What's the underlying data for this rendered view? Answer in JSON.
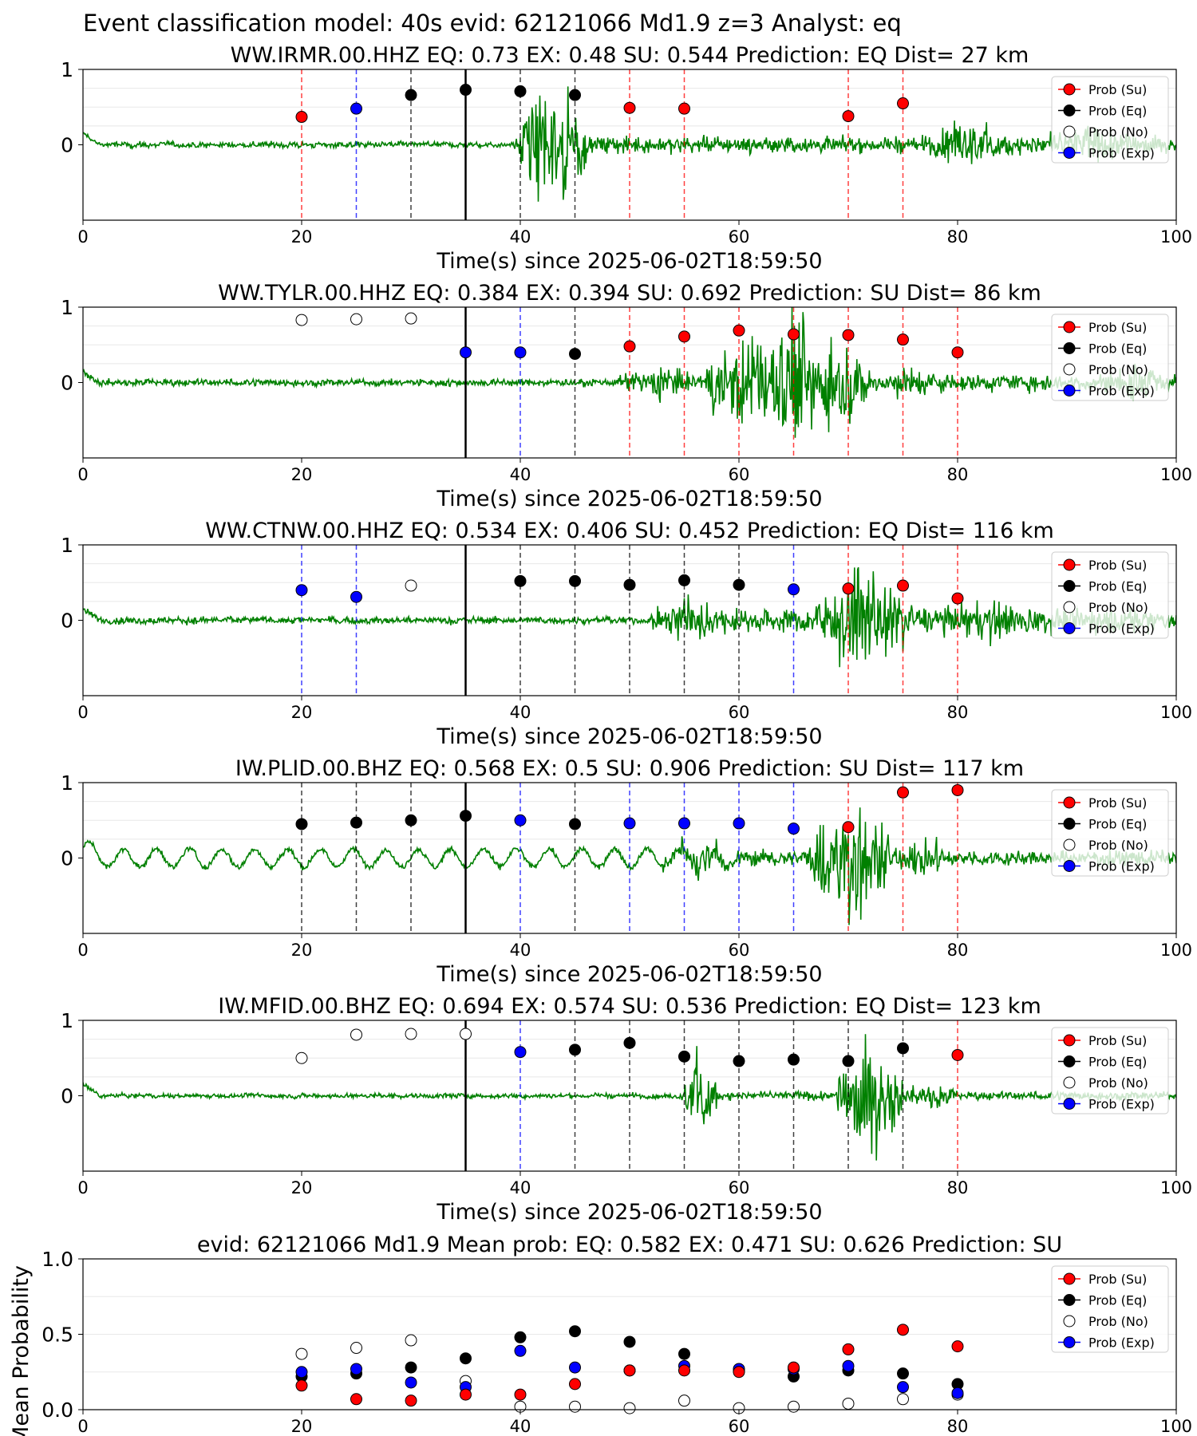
{
  "figure": {
    "suptitle": "Event classification model: 40s evid: 62121066 Md1.9 z=3 Analyst: eq",
    "colors": {
      "su": "#ff0000",
      "eq": "#000000",
      "no": "#ffffff",
      "exp": "#0000ff",
      "waveform": "#008000",
      "arrival_line": "#000000"
    },
    "legend": [
      "Prob (Su)",
      "Prob (Eq)",
      "Prob (No)",
      "Prob (Exp)"
    ],
    "legend_placement": "upper-right"
  },
  "chart_data": [
    {
      "type": "scatter",
      "panel": "station",
      "title": "WW.IRMR.00.HHZ   EQ: 0.73  EX: 0.48  SU: 0.544   Prediction: EQ    Dist= 27 km",
      "xlabel": "Time(s) since 2025-06-02T18:59:50",
      "xlim": [
        0,
        100
      ],
      "ylim": [
        -1,
        1
      ],
      "xticks": [
        "0",
        "20",
        "40",
        "60",
        "80",
        "100"
      ],
      "yticks": [
        "0",
        "1"
      ],
      "arrival_time": 35,
      "waveform": {
        "onset": 39.5,
        "bursts": [
          [
            40,
            46,
            1.2
          ],
          [
            77,
            85,
            0.45
          ],
          [
            84,
            100,
            0.3
          ]
        ],
        "pre_amp": 0.05,
        "post_amp": 0.14
      },
      "points": [
        {
          "t": 20,
          "p": 0.37,
          "class": "su"
        },
        {
          "t": 25,
          "p": 0.48,
          "class": "exp"
        },
        {
          "t": 30,
          "p": 0.66,
          "class": "eq"
        },
        {
          "t": 35,
          "p": 0.73,
          "class": "eq"
        },
        {
          "t": 40,
          "p": 0.71,
          "class": "eq"
        },
        {
          "t": 45,
          "p": 0.66,
          "class": "eq"
        },
        {
          "t": 50,
          "p": 0.49,
          "class": "su"
        },
        {
          "t": 55,
          "p": 0.48,
          "class": "su"
        },
        {
          "t": 70,
          "p": 0.38,
          "class": "su"
        },
        {
          "t": 75,
          "p": 0.55,
          "class": "su"
        }
      ]
    },
    {
      "type": "scatter",
      "panel": "station",
      "title": "WW.TYLR.00.HHZ   EQ: 0.384  EX: 0.394  SU: 0.692   Prediction: SU    Dist= 86 km",
      "xlabel": "Time(s) since 2025-06-02T18:59:50",
      "xlim": [
        0,
        100
      ],
      "ylim": [
        -1,
        1
      ],
      "xticks": [
        "0",
        "20",
        "40",
        "60",
        "80",
        "100"
      ],
      "yticks": [
        "0",
        "1"
      ],
      "arrival_time": 35,
      "waveform": {
        "onset": 49,
        "bursts": [
          [
            50,
            56,
            0.35
          ],
          [
            57,
            72,
            1.1
          ],
          [
            72,
            80,
            0.3
          ],
          [
            92,
            100,
            0.3
          ]
        ],
        "pre_amp": 0.06,
        "post_amp": 0.15
      },
      "points": [
        {
          "t": 20,
          "p": 0.83,
          "class": "no"
        },
        {
          "t": 25,
          "p": 0.84,
          "class": "no"
        },
        {
          "t": 30,
          "p": 0.85,
          "class": "no"
        },
        {
          "t": 35,
          "p": 0.4,
          "class": "exp"
        },
        {
          "t": 40,
          "p": 0.4,
          "class": "exp"
        },
        {
          "t": 45,
          "p": 0.38,
          "class": "eq"
        },
        {
          "t": 50,
          "p": 0.48,
          "class": "su"
        },
        {
          "t": 55,
          "p": 0.61,
          "class": "su"
        },
        {
          "t": 60,
          "p": 0.69,
          "class": "su"
        },
        {
          "t": 65,
          "p": 0.64,
          "class": "su"
        },
        {
          "t": 70,
          "p": 0.63,
          "class": "su"
        },
        {
          "t": 75,
          "p": 0.57,
          "class": "su"
        },
        {
          "t": 80,
          "p": 0.4,
          "class": "su"
        }
      ]
    },
    {
      "type": "scatter",
      "panel": "station",
      "title": "WW.CTNW.00.HHZ   EQ: 0.534  EX: 0.406  SU: 0.452   Prediction: EQ    Dist= 116 km",
      "xlabel": "Time(s) since 2025-06-02T18:59:50",
      "xlim": [
        0,
        100
      ],
      "ylim": [
        -1,
        1
      ],
      "xticks": [
        "0",
        "20",
        "40",
        "60",
        "80",
        "100"
      ],
      "yticks": [
        "0",
        "1"
      ],
      "arrival_time": 35,
      "waveform": {
        "onset": 52,
        "bursts": [
          [
            53,
            58,
            0.55
          ],
          [
            67,
            76,
            0.95
          ],
          [
            76,
            90,
            0.35
          ]
        ],
        "pre_amp": 0.06,
        "post_amp": 0.22
      },
      "points": [
        {
          "t": 20,
          "p": 0.4,
          "class": "exp"
        },
        {
          "t": 25,
          "p": 0.31,
          "class": "exp"
        },
        {
          "t": 30,
          "p": 0.46,
          "class": "no"
        },
        {
          "t": 40,
          "p": 0.52,
          "class": "eq"
        },
        {
          "t": 45,
          "p": 0.52,
          "class": "eq"
        },
        {
          "t": 50,
          "p": 0.47,
          "class": "eq"
        },
        {
          "t": 55,
          "p": 0.53,
          "class": "eq"
        },
        {
          "t": 60,
          "p": 0.47,
          "class": "eq"
        },
        {
          "t": 65,
          "p": 0.41,
          "class": "exp"
        },
        {
          "t": 70,
          "p": 0.42,
          "class": "su"
        },
        {
          "t": 75,
          "p": 0.46,
          "class": "su"
        },
        {
          "t": 80,
          "p": 0.29,
          "class": "su"
        }
      ]
    },
    {
      "type": "scatter",
      "panel": "station",
      "title": "IW.PLID.00.BHZ   EQ: 0.568  EX: 0.5  SU: 0.906   Prediction: SU    Dist= 117 km",
      "xlabel": "Time(s) since 2025-06-02T18:59:50",
      "xlim": [
        0,
        100
      ],
      "ylim": [
        -1,
        1
      ],
      "xticks": [
        "0",
        "20",
        "40",
        "60",
        "80",
        "100"
      ],
      "yticks": [
        "0",
        "1"
      ],
      "arrival_time": 35,
      "waveform": {
        "onset": 53,
        "bursts": [
          [
            53,
            60,
            0.3
          ],
          [
            66,
            74,
            1.2
          ],
          [
            74,
            80,
            0.35
          ]
        ],
        "pre_amp": 0.05,
        "post_amp": 0.13,
        "swell": 0.12
      },
      "points": [
        {
          "t": 20,
          "p": 0.45,
          "class": "eq"
        },
        {
          "t": 25,
          "p": 0.47,
          "class": "eq"
        },
        {
          "t": 30,
          "p": 0.5,
          "class": "eq"
        },
        {
          "t": 35,
          "p": 0.56,
          "class": "eq"
        },
        {
          "t": 40,
          "p": 0.5,
          "class": "exp"
        },
        {
          "t": 45,
          "p": 0.45,
          "class": "eq"
        },
        {
          "t": 50,
          "p": 0.46,
          "class": "exp"
        },
        {
          "t": 55,
          "p": 0.46,
          "class": "exp"
        },
        {
          "t": 60,
          "p": 0.46,
          "class": "exp"
        },
        {
          "t": 65,
          "p": 0.39,
          "class": "exp"
        },
        {
          "t": 70,
          "p": 0.41,
          "class": "su"
        },
        {
          "t": 75,
          "p": 0.87,
          "class": "su"
        },
        {
          "t": 80,
          "p": 0.9,
          "class": "su"
        }
      ]
    },
    {
      "type": "scatter",
      "panel": "station",
      "title": "IW.MFID.00.BHZ   EQ: 0.694  EX: 0.574  SU: 0.536   Prediction: EQ    Dist= 123 km",
      "xlabel": "Time(s) since 2025-06-02T18:59:50",
      "xlim": [
        0,
        100
      ],
      "ylim": [
        -1,
        1
      ],
      "xticks": [
        "0",
        "20",
        "40",
        "60",
        "80",
        "100"
      ],
      "yticks": [
        "0",
        "1"
      ],
      "arrival_time": 35,
      "waveform": {
        "onset": 54.5,
        "bursts": [
          [
            55,
            58,
            0.85
          ],
          [
            69,
            75,
            1.15
          ],
          [
            75,
            80,
            0.25
          ]
        ],
        "pre_amp": 0.04,
        "post_amp": 0.07
      },
      "points": [
        {
          "t": 20,
          "p": 0.5,
          "class": "no"
        },
        {
          "t": 25,
          "p": 0.81,
          "class": "no"
        },
        {
          "t": 30,
          "p": 0.82,
          "class": "no"
        },
        {
          "t": 35,
          "p": 0.82,
          "class": "no"
        },
        {
          "t": 40,
          "p": 0.58,
          "class": "exp"
        },
        {
          "t": 45,
          "p": 0.61,
          "class": "eq"
        },
        {
          "t": 50,
          "p": 0.7,
          "class": "eq"
        },
        {
          "t": 55,
          "p": 0.52,
          "class": "eq"
        },
        {
          "t": 60,
          "p": 0.46,
          "class": "eq"
        },
        {
          "t": 65,
          "p": 0.48,
          "class": "eq"
        },
        {
          "t": 70,
          "p": 0.46,
          "class": "eq"
        },
        {
          "t": 75,
          "p": 0.63,
          "class": "eq"
        },
        {
          "t": 80,
          "p": 0.54,
          "class": "su"
        }
      ]
    },
    {
      "type": "scatter",
      "panel": "summary",
      "title": "evid: 62121066  Md1.9   Mean prob:   EQ: 0.582  EX: 0.471  SU: 0.626   Prediction: SU",
      "ylabel": "Mean Probability",
      "xlim": [
        0,
        100
      ],
      "ylim": [
        0,
        1
      ],
      "xticks": [
        "0",
        "20",
        "40",
        "60",
        "80",
        "100"
      ],
      "yticks": [
        "0.0",
        "0.5",
        "1.0"
      ],
      "x": [
        20,
        25,
        30,
        35,
        40,
        45,
        50,
        55,
        60,
        65,
        70,
        75,
        80
      ],
      "series": [
        {
          "name": "Prob (No)",
          "class": "no",
          "values": [
            0.37,
            0.41,
            0.46,
            0.19,
            0.02,
            0.02,
            0.01,
            0.06,
            0.01,
            0.02,
            0.04,
            0.07,
            0.1
          ]
        },
        {
          "name": "Prob (Eq)",
          "class": "eq",
          "values": [
            0.22,
            0.24,
            0.28,
            0.34,
            0.48,
            0.52,
            0.45,
            0.37,
            0.26,
            0.22,
            0.26,
            0.24,
            0.17
          ]
        },
        {
          "name": "Prob (Exp)",
          "class": "exp",
          "values": [
            0.25,
            0.27,
            0.18,
            0.15,
            0.39,
            0.28,
            0.26,
            0.29,
            0.27,
            0.27,
            0.29,
            0.15,
            0.11
          ]
        },
        {
          "name": "Prob (Su)",
          "class": "su",
          "values": [
            0.16,
            0.07,
            0.06,
            0.1,
            0.1,
            0.17,
            0.26,
            0.26,
            0.25,
            0.28,
            0.4,
            0.53,
            0.42
          ]
        }
      ]
    }
  ]
}
